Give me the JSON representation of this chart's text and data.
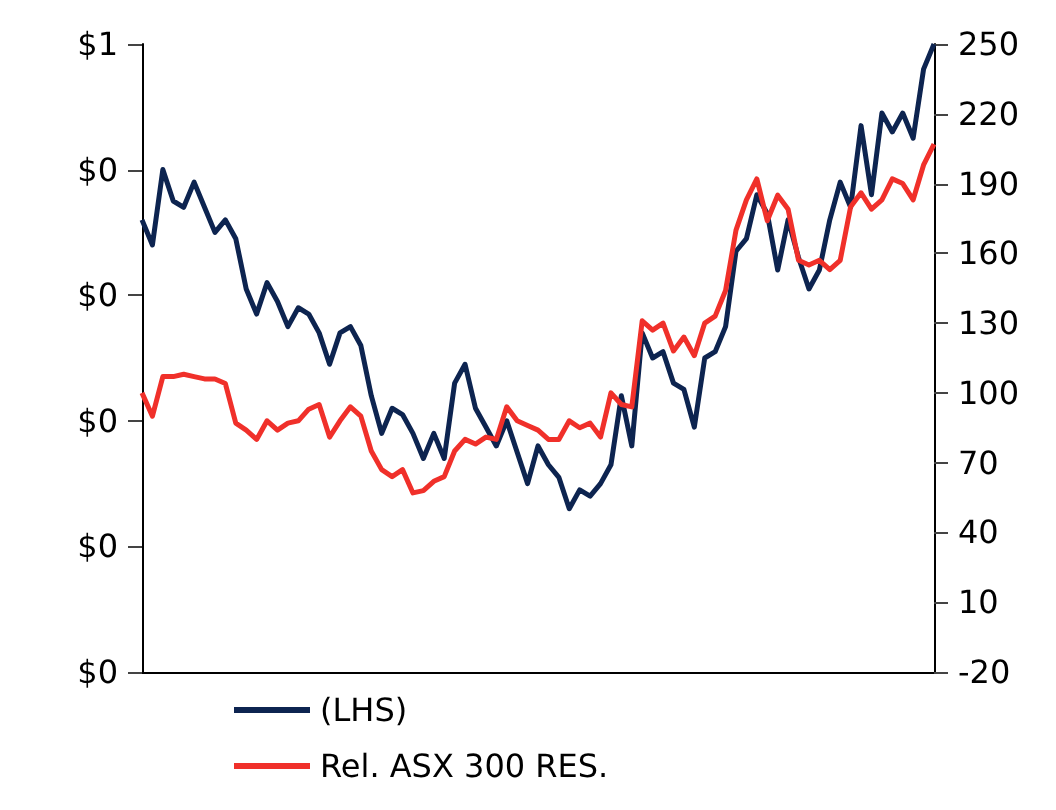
{
  "chart_data": {
    "type": "line",
    "categories": [
      null,
      null,
      null,
      null,
      null,
      null,
      null,
      null,
      null,
      null,
      null,
      null,
      null,
      null,
      null,
      null,
      null,
      null,
      null,
      null,
      null,
      null,
      null,
      null,
      null,
      null,
      null,
      null,
      null,
      null,
      null,
      null,
      null,
      null,
      null,
      null,
      null,
      null,
      null,
      null,
      null,
      null,
      null,
      null,
      null,
      null,
      null,
      null,
      null,
      null,
      null,
      null,
      null,
      null,
      null,
      null,
      null,
      null,
      null,
      null,
      null,
      null,
      null,
      null,
      null,
      null,
      null,
      null,
      null,
      null,
      null,
      null,
      null,
      null,
      null,
      null,
      null
    ],
    "series": [
      {
        "name": "(LHS)",
        "color": "#0d2450",
        "values": [
          0.36,
          0.34,
          0.4,
          0.375,
          0.37,
          0.39,
          0.37,
          0.35,
          0.36,
          0.345,
          0.305,
          0.285,
          0.31,
          0.295,
          0.275,
          0.29,
          0.285,
          0.27,
          0.245,
          0.27,
          0.275,
          0.26,
          0.22,
          0.19,
          0.21,
          0.205,
          0.19,
          0.17,
          0.19,
          0.17,
          0.23,
          0.245,
          0.21,
          0.195,
          0.18,
          0.2,
          0.175,
          0.15,
          0.18,
          0.165,
          0.155,
          0.13,
          0.145,
          0.14,
          0.15,
          0.165,
          0.22,
          0.18,
          0.27,
          0.25,
          0.255,
          0.23,
          0.225,
          0.195,
          0.25,
          0.255,
          0.275,
          0.335,
          0.345,
          0.38,
          0.365,
          0.32,
          0.36,
          0.33,
          0.305,
          0.32,
          0.36,
          0.39,
          0.37,
          0.435,
          0.38,
          0.445,
          0.43,
          0.445,
          0.425,
          0.48,
          0.5
        ]
      },
      {
        "name": "Rel. ASX 300 RES.",
        "color": "#f0302a",
        "axis": "y2",
        "values": [
          100,
          90,
          107,
          107,
          108,
          107,
          106,
          106,
          104,
          87,
          84,
          80,
          88,
          84,
          87,
          88,
          93,
          95,
          81,
          88,
          94,
          90,
          75,
          67,
          64,
          67,
          57,
          58,
          62,
          64,
          75,
          80,
          78,
          81,
          80,
          94,
          88,
          86,
          84,
          80,
          80,
          88,
          85,
          87,
          81,
          100,
          95,
          94,
          131,
          127,
          130,
          118,
          124,
          116,
          130,
          133,
          144,
          170,
          183,
          192,
          174,
          185,
          179,
          157,
          155,
          157,
          153,
          157,
          180,
          186,
          179,
          183,
          192,
          190,
          183,
          198,
          207
        ]
      }
    ],
    "ylim": [
      0,
      0.5
    ],
    "yticks": [
      {
        "value": 0,
        "label": "$0"
      },
      {
        "value": 0.1,
        "label": "$0"
      },
      {
        "value": 0.2,
        "label": "$0"
      },
      {
        "value": 0.3,
        "label": "$0"
      },
      {
        "value": 0.4,
        "label": "$0"
      },
      {
        "value": 0.5,
        "label": "$1"
      }
    ],
    "y2lim": [
      -20,
      250
    ],
    "y2ticks": [
      -20,
      10,
      40,
      70,
      100,
      130,
      160,
      190,
      220,
      250
    ],
    "legend": "bottom",
    "marker": "none",
    "line_style": "solid",
    "grid": false
  }
}
